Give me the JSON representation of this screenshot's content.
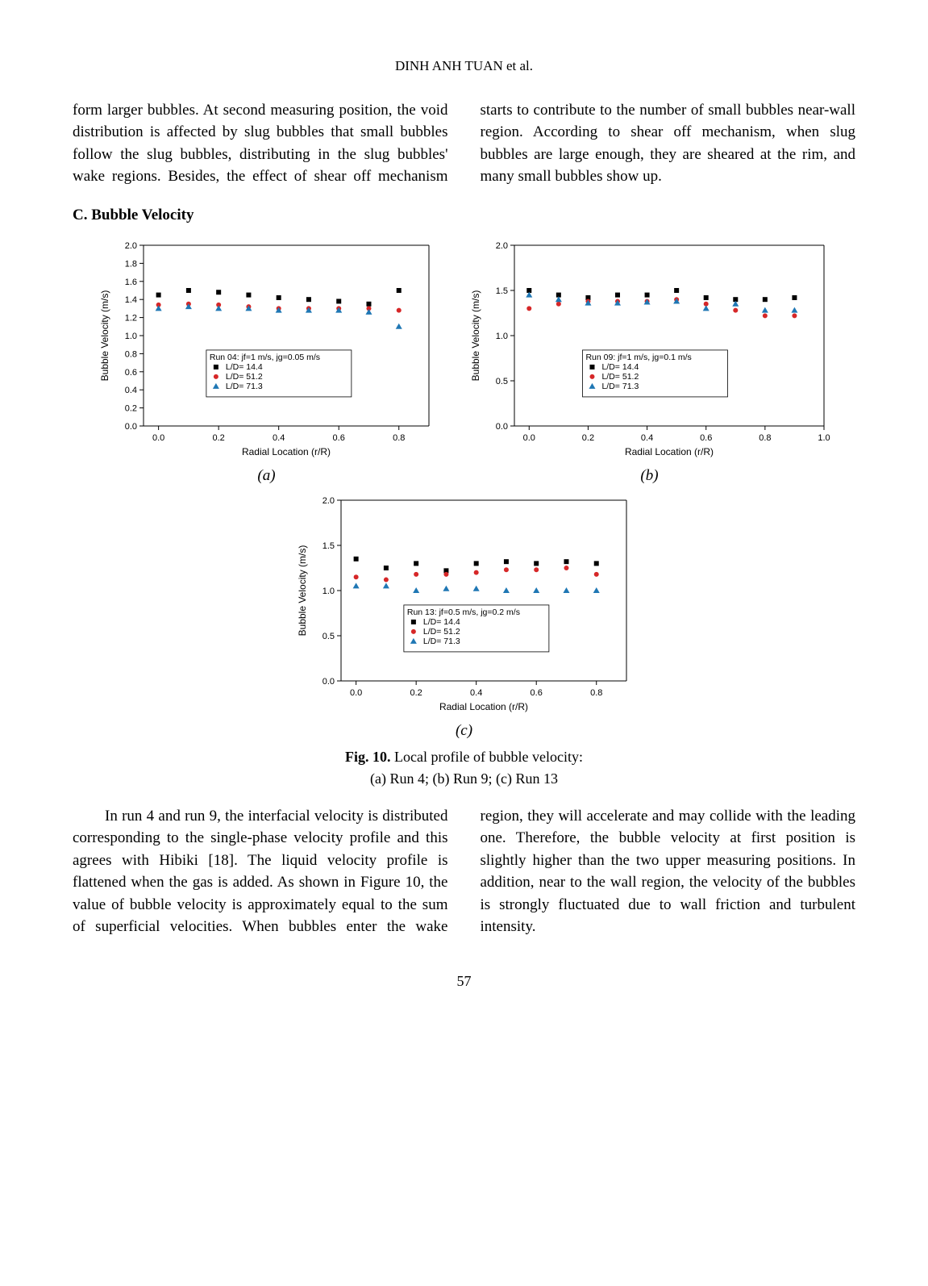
{
  "running_head": "DINH ANH TUAN et al.",
  "top_para": "form larger bubbles. At second measuring position, the void distribution is affected by slug bubbles that small bubbles follow the slug bubbles, distributing in the slug bubbles' wake regions. Besides, the effect of shear off mechanism starts to contribute to the number of small bubbles near-wall region. According to shear off mechanism, when slug bubbles are large enough, they are sheared at the rim, and many small bubbles show up.",
  "section_head": "C. Bubble Velocity",
  "charts": {
    "common": {
      "xlabel": "Radial Location (r/R)",
      "ylabel": "Bubble Velocity (m/s)",
      "series": [
        {
          "name": "L/D= 14.4",
          "color": "#000000",
          "marker": "square"
        },
        {
          "name": "L/D= 51.2",
          "color": "#d62728",
          "marker": "circle"
        },
        {
          "name": "L/D= 71.3",
          "color": "#1f77b4",
          "marker": "triangle"
        }
      ],
      "bg": "#ffffff"
    },
    "a": {
      "type": "scatter",
      "title": "Run 04: jf=1 m/s, jg=0.05 m/s",
      "sub": "(a)",
      "xlim": [
        -0.05,
        0.9
      ],
      "xticks": [
        0.0,
        0.2,
        0.4,
        0.6,
        0.8
      ],
      "ylim": [
        0.0,
        2.0
      ],
      "yticks": [
        0.0,
        0.2,
        0.4,
        0.6,
        0.8,
        1.0,
        1.2,
        1.4,
        1.6,
        1.8,
        2.0
      ],
      "legend_title": "Run 04: jf=1 m/s, jg=0.05 m/s",
      "data": {
        "s1": [
          [
            0.0,
            1.45
          ],
          [
            0.1,
            1.5
          ],
          [
            0.2,
            1.48
          ],
          [
            0.3,
            1.45
          ],
          [
            0.4,
            1.42
          ],
          [
            0.5,
            1.4
          ],
          [
            0.6,
            1.38
          ],
          [
            0.7,
            1.35
          ],
          [
            0.8,
            1.5
          ]
        ],
        "s2": [
          [
            0.0,
            1.34
          ],
          [
            0.1,
            1.35
          ],
          [
            0.2,
            1.34
          ],
          [
            0.3,
            1.32
          ],
          [
            0.4,
            1.3
          ],
          [
            0.5,
            1.3
          ],
          [
            0.6,
            1.3
          ],
          [
            0.7,
            1.3
          ],
          [
            0.8,
            1.28
          ]
        ],
        "s3": [
          [
            0.0,
            1.3
          ],
          [
            0.1,
            1.32
          ],
          [
            0.2,
            1.3
          ],
          [
            0.3,
            1.3
          ],
          [
            0.4,
            1.28
          ],
          [
            0.5,
            1.28
          ],
          [
            0.6,
            1.28
          ],
          [
            0.7,
            1.26
          ],
          [
            0.8,
            1.1
          ]
        ]
      }
    },
    "b": {
      "type": "scatter",
      "title": "Run 09: jf=1 m/s, jg=0.1 m/s",
      "sub": "(b)",
      "xlim": [
        -0.05,
        1.0
      ],
      "xticks": [
        0.0,
        0.2,
        0.4,
        0.6,
        0.8,
        1.0
      ],
      "ylim": [
        0.0,
        2.0
      ],
      "yticks": [
        0.0,
        0.5,
        1.0,
        1.5,
        2.0
      ],
      "legend_title": "Run 09: jf=1 m/s, jg=0.1 m/s",
      "data": {
        "s1": [
          [
            0.0,
            1.5
          ],
          [
            0.1,
            1.45
          ],
          [
            0.2,
            1.42
          ],
          [
            0.3,
            1.45
          ],
          [
            0.4,
            1.45
          ],
          [
            0.5,
            1.5
          ],
          [
            0.6,
            1.42
          ],
          [
            0.7,
            1.4
          ],
          [
            0.8,
            1.4
          ],
          [
            0.9,
            1.42
          ]
        ],
        "s2": [
          [
            0.0,
            1.3
          ],
          [
            0.1,
            1.35
          ],
          [
            0.2,
            1.38
          ],
          [
            0.3,
            1.38
          ],
          [
            0.4,
            1.38
          ],
          [
            0.5,
            1.4
          ],
          [
            0.6,
            1.35
          ],
          [
            0.7,
            1.28
          ],
          [
            0.8,
            1.22
          ],
          [
            0.9,
            1.22
          ]
        ],
        "s3": [
          [
            0.0,
            1.45
          ],
          [
            0.1,
            1.4
          ],
          [
            0.2,
            1.36
          ],
          [
            0.3,
            1.36
          ],
          [
            0.4,
            1.37
          ],
          [
            0.5,
            1.38
          ],
          [
            0.6,
            1.3
          ],
          [
            0.7,
            1.35
          ],
          [
            0.8,
            1.28
          ],
          [
            0.9,
            1.28
          ]
        ]
      }
    },
    "c": {
      "type": "scatter",
      "title": "Run 13: jf=0.5 m/s, jg=0.2 m/s",
      "sub": "(c)",
      "xlim": [
        -0.05,
        0.9
      ],
      "xticks": [
        0.0,
        0.2,
        0.4,
        0.6,
        0.8
      ],
      "ylim": [
        0.0,
        2.0
      ],
      "yticks": [
        0.0,
        0.5,
        1.0,
        1.5,
        2.0
      ],
      "legend_title": "Run 13: jf=0.5 m/s, jg=0.2 m/s",
      "data": {
        "s1": [
          [
            0.0,
            1.35
          ],
          [
            0.1,
            1.25
          ],
          [
            0.2,
            1.3
          ],
          [
            0.3,
            1.22
          ],
          [
            0.4,
            1.3
          ],
          [
            0.5,
            1.32
          ],
          [
            0.6,
            1.3
          ],
          [
            0.7,
            1.32
          ],
          [
            0.8,
            1.3
          ]
        ],
        "s2": [
          [
            0.0,
            1.15
          ],
          [
            0.1,
            1.12
          ],
          [
            0.2,
            1.18
          ],
          [
            0.3,
            1.18
          ],
          [
            0.4,
            1.2
          ],
          [
            0.5,
            1.23
          ],
          [
            0.6,
            1.23
          ],
          [
            0.7,
            1.25
          ],
          [
            0.8,
            1.18
          ]
        ],
        "s3": [
          [
            0.0,
            1.05
          ],
          [
            0.1,
            1.05
          ],
          [
            0.2,
            1.0
          ],
          [
            0.3,
            1.02
          ],
          [
            0.4,
            1.02
          ],
          [
            0.5,
            1.0
          ],
          [
            0.6,
            1.0
          ],
          [
            0.7,
            1.0
          ],
          [
            0.8,
            1.0
          ]
        ]
      }
    }
  },
  "fig_caption_bold": "Fig. 10.",
  "fig_caption_rest": " Local profile of bubble velocity:",
  "fig_caption_line2": "(a) Run 4; (b) Run 9; (c) Run 13",
  "bottom_para": "In run 4 and run 9, the interfacial velocity is distributed corresponding to the single-phase velocity profile and this agrees with Hibiki [18]. The liquid velocity profile is flattened when the gas is added. As shown in Figure 10, the value of bubble velocity is approximately equal to the sum of superficial velocities. When bubbles enter the wake region, they will accelerate and may collide with the leading one. Therefore, the bubble velocity at first position is slightly higher than the two upper measuring positions. In addition, near to the wall region, the velocity of the bubbles is strongly fluctuated due to wall friction and turbulent intensity.",
  "page_number": "57"
}
